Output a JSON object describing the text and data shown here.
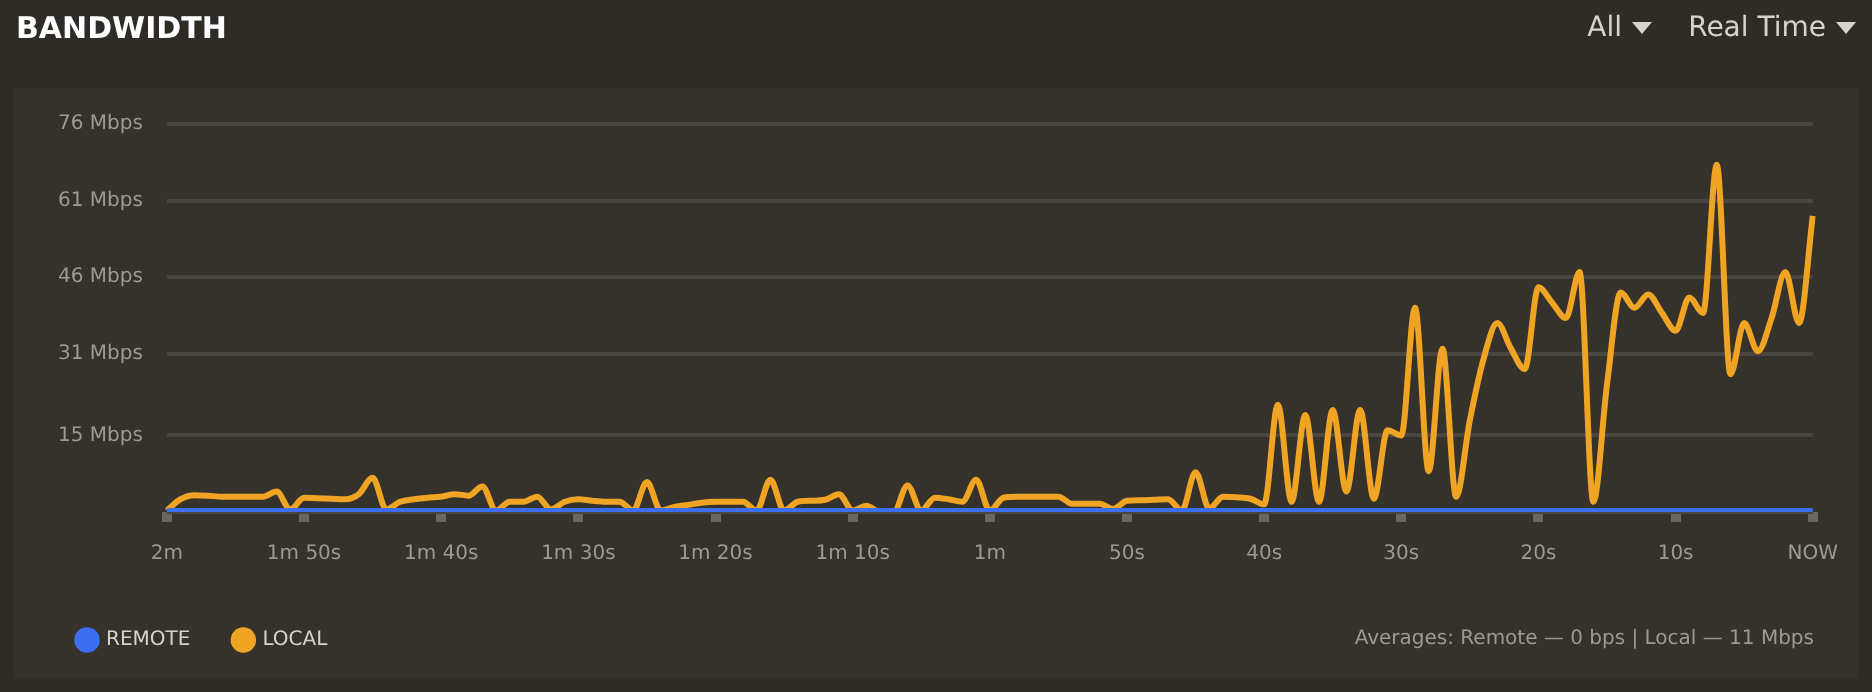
{
  "chart_data": {
    "type": "line",
    "title": "BANDWIDTH",
    "annotations": [
      "All",
      "Real Time",
      "Averages: Remote — 0 bps | Local — 11 Mbps"
    ],
    "categories": [
      "2m",
      null,
      null,
      null,
      null,
      null,
      null,
      null,
      null,
      null,
      "1m 50s",
      null,
      null,
      null,
      null,
      null,
      null,
      null,
      null,
      null,
      "1m 40s",
      null,
      null,
      null,
      null,
      null,
      null,
      null,
      null,
      null,
      "1m 30s",
      null,
      null,
      null,
      null,
      null,
      null,
      null,
      null,
      null,
      "1m 20s",
      null,
      null,
      null,
      null,
      null,
      null,
      null,
      null,
      null,
      "1m 10s",
      null,
      null,
      null,
      null,
      null,
      null,
      null,
      null,
      null,
      "1m",
      null,
      null,
      null,
      null,
      null,
      null,
      null,
      null,
      null,
      "50s",
      null,
      null,
      null,
      null,
      null,
      null,
      null,
      null,
      null,
      "40s",
      null,
      null,
      null,
      null,
      null,
      null,
      null,
      null,
      null,
      "30s",
      null,
      null,
      null,
      null,
      null,
      null,
      null,
      null,
      null,
      "20s",
      null,
      null,
      null,
      null,
      null,
      null,
      null,
      null,
      null,
      "10s",
      null,
      null,
      null,
      null,
      null,
      null,
      null,
      null,
      null,
      "NOW"
    ],
    "ylim": [
      0,
      76
    ],
    "yticks": [
      {
        "value": 0,
        "label": null
      },
      {
        "value": 15,
        "label": "15 Mbps"
      },
      {
        "value": 31,
        "label": "31 Mbps"
      },
      {
        "value": 46,
        "label": "46 Mbps"
      },
      {
        "value": 61,
        "label": "61 Mbps"
      },
      {
        "value": 76,
        "label": "76 Mbps"
      }
    ],
    "grid": "y",
    "legend": "bottom left",
    "marker": "none",
    "line_style": "solid",
    "series": [
      {
        "name": "REMOTE",
        "color": "#3b6ff0",
        "values": [
          0,
          0,
          0,
          0,
          0,
          0,
          0,
          0,
          0,
          0,
          0,
          0,
          0,
          0,
          0,
          0,
          0,
          0,
          0,
          0,
          0,
          0,
          0,
          0,
          0,
          0,
          0,
          0,
          0,
          0,
          0,
          0,
          0,
          0,
          0,
          0,
          0,
          0,
          0,
          0,
          0,
          0,
          0,
          0,
          0,
          0,
          0,
          0,
          0,
          0,
          0,
          0,
          0,
          0,
          0,
          0,
          0,
          0,
          0,
          0,
          0,
          0,
          0,
          0,
          0,
          0,
          0,
          0,
          0,
          0,
          0,
          0,
          0,
          0,
          0,
          0,
          0,
          0,
          0,
          0,
          0,
          0,
          0,
          0,
          0,
          0,
          0,
          0,
          0,
          0,
          0,
          0,
          0,
          0,
          0,
          0,
          0,
          0,
          0,
          0,
          0,
          0,
          0,
          0,
          0,
          0,
          0,
          0,
          0,
          0,
          0,
          0,
          0,
          0,
          0,
          0,
          0,
          0,
          0,
          0,
          0
        ]
      },
      {
        "name": "LOCAL",
        "color": "#f0a424",
        "values": [
          0.3,
          2.5,
          3.3,
          3.2,
          3,
          3,
          3,
          3,
          4,
          0.5,
          2.8,
          2.7,
          2.6,
          2.5,
          3.5,
          6.7,
          0.5,
          2,
          2.5,
          2.8,
          3,
          3.5,
          3.2,
          5,
          0.3,
          2,
          2,
          3,
          0.5,
          2,
          2.5,
          2.2,
          2,
          2,
          0.3,
          5.9,
          0.3,
          1,
          1.4,
          1.8,
          2,
          2,
          2,
          0.3,
          6.3,
          0.3,
          2,
          2.2,
          2.4,
          3.5,
          0.3,
          1.2,
          0,
          0,
          5.2,
          0.3,
          2.8,
          2.5,
          2,
          6.3,
          0.3,
          2.8,
          3,
          3,
          3,
          3,
          1.6,
          1.6,
          1.6,
          0.6,
          2.2,
          2.3,
          2.4,
          2.5,
          0.3,
          7.8,
          0.7,
          3,
          2.9,
          2.6,
          1.5,
          21,
          2,
          19,
          2,
          20,
          4,
          20,
          2.6,
          16,
          15,
          40,
          8,
          32,
          3,
          18,
          30,
          37,
          32,
          28,
          44,
          41,
          38,
          47,
          2,
          25,
          43,
          40,
          42.6,
          39,
          35.5,
          42,
          39,
          68,
          27,
          37,
          31.5,
          38,
          47,
          37,
          58
        ]
      }
    ]
  }
}
